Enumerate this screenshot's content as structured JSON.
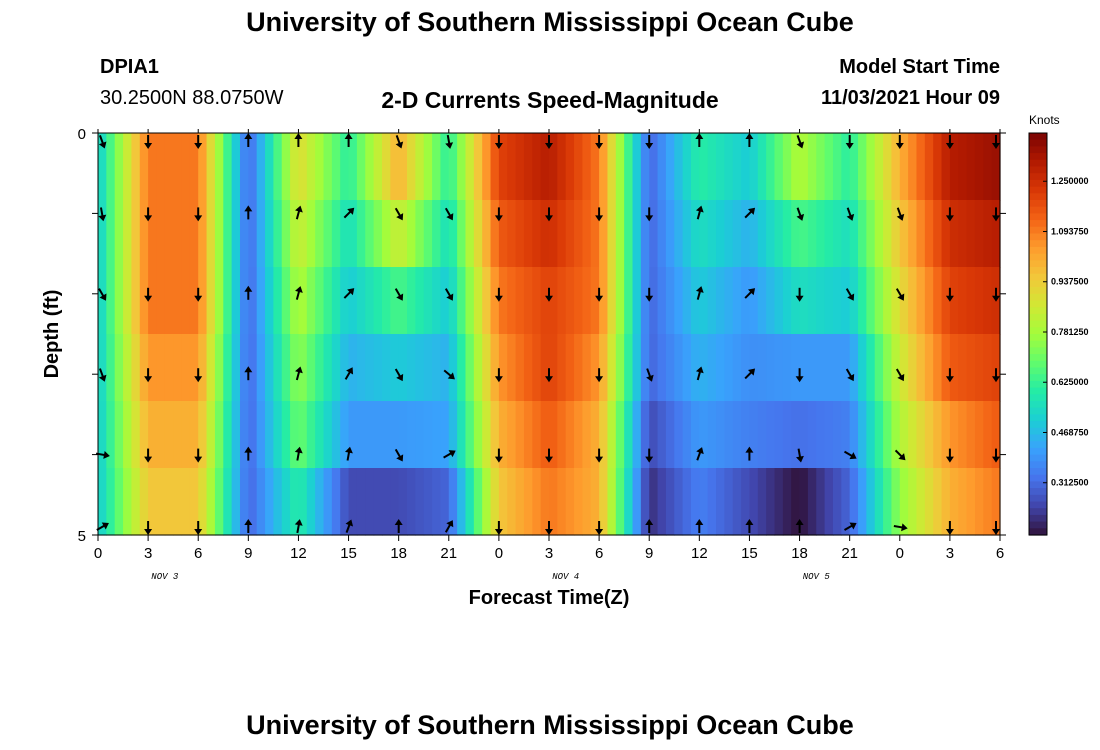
{
  "header": {
    "title": "University of Southern Mississippi Ocean Cube",
    "station_id": "DPIA1",
    "station_coords": "30.2500N  88.0750W",
    "plot_title": "2-D Currents Speed-Magnitude",
    "model_start_label": "Model Start Time",
    "model_start_value": "11/03/2021 Hour 09"
  },
  "footer": {
    "title": "University of Southern Mississippi Ocean Cube"
  },
  "chart_data": {
    "type": "heatmap",
    "title": "2-D Currents Speed-Magnitude",
    "xlabel": "Forecast Time(Z)",
    "ylabel": "Depth (ft)",
    "x_tick_labels": [
      "0",
      "3",
      "6",
      "9",
      "12",
      "15",
      "18",
      "21",
      "0",
      "3",
      "6",
      "9",
      "12",
      "15",
      "18",
      "21",
      "0",
      "3",
      "6"
    ],
    "x_day_labels": [
      {
        "label": "NOV 3",
        "at_hour": 4
      },
      {
        "label": "NOV 4",
        "at_hour": 28
      },
      {
        "label": "NOV 5",
        "at_hour": 43
      }
    ],
    "x_range_hours": [
      0,
      54
    ],
    "y_tick_labels": [
      "0",
      "5"
    ],
    "ylim": [
      0,
      5
    ],
    "depth_levels": [
      0,
      1,
      2,
      3,
      4,
      5
    ],
    "colorbar": {
      "label": "Knots",
      "tick_labels": [
        "0.312500",
        "0.468750",
        "0.625000",
        "0.781250",
        "0.937500",
        "1.093750",
        "1.250000"
      ],
      "range": [
        0.15,
        1.4
      ],
      "colors": [
        "#30123b",
        "#4145ab",
        "#4675ed",
        "#39a2fc",
        "#1bcfd4",
        "#24eca6",
        "#61fc6c",
        "#a4fc3b",
        "#d1e834",
        "#f3c63a",
        "#fe9b2d",
        "#f36315",
        "#d93806",
        "#b11901",
        "#7a0403"
      ]
    },
    "arrow_hours": [
      0,
      3,
      6,
      9,
      12,
      15,
      18,
      21,
      24,
      27,
      30,
      33,
      36,
      39,
      42,
      45,
      48,
      51,
      54
    ],
    "speed_rows": [
      [
        0.5,
        1.1,
        1.1,
        0.3,
        0.9,
        0.6,
        1.0,
        0.6,
        1.2,
        1.3,
        1.1,
        0.3,
        0.6,
        0.5,
        0.8,
        0.6,
        1.0,
        1.3,
        1.35
      ],
      [
        0.5,
        1.1,
        1.1,
        0.3,
        0.85,
        0.55,
        0.85,
        0.55,
        1.15,
        1.25,
        1.1,
        0.3,
        0.55,
        0.45,
        0.65,
        0.55,
        0.95,
        1.25,
        1.3
      ],
      [
        0.5,
        1.1,
        1.1,
        0.3,
        0.8,
        0.5,
        0.65,
        0.5,
        1.1,
        1.2,
        1.1,
        0.3,
        0.5,
        0.4,
        0.55,
        0.5,
        0.9,
        1.2,
        1.25
      ],
      [
        0.5,
        1.05,
        1.05,
        0.3,
        0.75,
        0.45,
        0.5,
        0.45,
        1.05,
        1.2,
        1.05,
        0.3,
        0.45,
        0.38,
        0.4,
        0.4,
        0.85,
        1.15,
        1.2
      ],
      [
        0.5,
        1.0,
        1.0,
        0.3,
        0.7,
        0.4,
        0.4,
        0.42,
        1.0,
        1.15,
        1.0,
        0.25,
        0.4,
        0.35,
        0.32,
        0.35,
        0.8,
        1.05,
        1.15
      ],
      [
        0.5,
        0.95,
        0.95,
        0.3,
        0.6,
        0.25,
        0.25,
        0.3,
        0.95,
        1.1,
        1.0,
        0.2,
        0.35,
        0.25,
        0.15,
        0.3,
        0.75,
        1.0,
        1.1
      ]
    ],
    "direction_rows_deg": [
      [
        160,
        180,
        180,
        0,
        0,
        0,
        160,
        170,
        180,
        180,
        180,
        180,
        0,
        0,
        160,
        180,
        180,
        180,
        180
      ],
      [
        170,
        180,
        180,
        0,
        15,
        45,
        150,
        150,
        180,
        180,
        180,
        180,
        15,
        45,
        160,
        160,
        160,
        180,
        180
      ],
      [
        150,
        180,
        180,
        0,
        15,
        45,
        150,
        150,
        180,
        180,
        180,
        180,
        15,
        45,
        180,
        150,
        150,
        180,
        180
      ],
      [
        160,
        180,
        180,
        0,
        15,
        30,
        150,
        130,
        180,
        180,
        180,
        160,
        15,
        45,
        180,
        150,
        150,
        180,
        180
      ],
      [
        100,
        180,
        180,
        0,
        10,
        10,
        150,
        60,
        180,
        180,
        180,
        180,
        20,
        0,
        170,
        120,
        135,
        180,
        180
      ],
      [
        60,
        180,
        180,
        0,
        10,
        20,
        0,
        30,
        180,
        180,
        180,
        0,
        0,
        0,
        0,
        60,
        100,
        180,
        180
      ]
    ]
  }
}
